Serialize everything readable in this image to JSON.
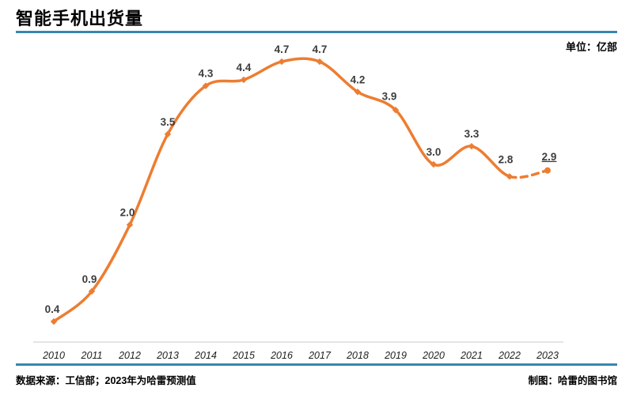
{
  "page": {
    "title": "智能手机出货量",
    "unit_label": "单位：亿部",
    "footer": {
      "source": "数据来源：工信部；2023年为哈雷预测值",
      "credit": "制图：哈雷的图书馆"
    }
  },
  "colors": {
    "line_orange": "#ED7D31",
    "rule_blue": "#3787B0",
    "axis_gray": "#DCDCDC",
    "value_label": "#3D3D3D"
  },
  "chart_data": {
    "type": "line",
    "title": "智能手机出货量",
    "unit": "亿部",
    "categories": [
      "2010",
      "2011",
      "2012",
      "2013",
      "2014",
      "2015",
      "2016",
      "2017",
      "2018",
      "2019",
      "2020",
      "2021",
      "2022",
      "2023"
    ],
    "values": [
      0.4,
      0.9,
      2.0,
      3.5,
      4.3,
      4.4,
      4.7,
      4.7,
      4.2,
      3.9,
      3.0,
      3.3,
      2.8,
      2.9
    ],
    "series_name": "智能手机出货量",
    "ylim": [
      0,
      5
    ],
    "grid": false,
    "smooth": true,
    "data_labels": true,
    "legend": "none",
    "line_color": "#ED7D31",
    "forecast": {
      "category": "2023",
      "value": 2.9,
      "segment_style": "dashed",
      "label_underlined": true
    }
  }
}
